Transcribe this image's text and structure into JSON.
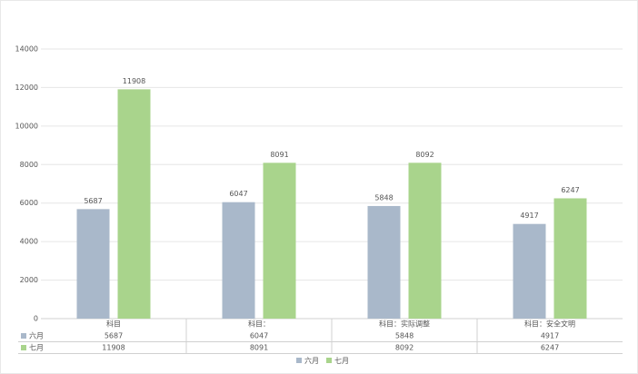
{
  "chart_data": {
    "type": "bar",
    "categories": [
      "科目",
      "科目：",
      "科目：实际调整",
      "科目：安全文明"
    ],
    "series": [
      {
        "name": "六月",
        "color": "#a9b8ca",
        "values": [
          5687,
          6047,
          5848,
          4917
        ]
      },
      {
        "name": "七月",
        "color": "#a9d48c",
        "values": [
          11908,
          8091,
          8092,
          6247
        ]
      }
    ],
    "ylim": [
      0,
      14000
    ],
    "yticks": [
      0,
      2000,
      4000,
      6000,
      8000,
      10000,
      12000,
      14000
    ],
    "grid": true,
    "legend": "bottom",
    "data_table": true
  }
}
